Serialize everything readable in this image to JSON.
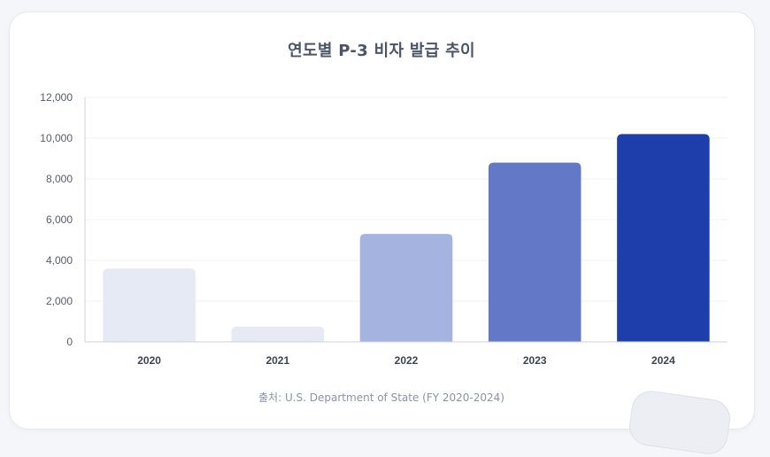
{
  "chart_data": {
    "type": "bar",
    "title": "연도별 P-3 비자 발급 추이",
    "categories": [
      "2020",
      "2021",
      "2022",
      "2023",
      "2024"
    ],
    "values": [
      3600,
      750,
      5300,
      8800,
      10200
    ],
    "bar_colors": [
      "#e6eaf5",
      "#e6eaf5",
      "#a4b3df",
      "#6379c7",
      "#1e3fab"
    ],
    "ylim": [
      0,
      12000
    ],
    "yticks": [
      0,
      2000,
      4000,
      6000,
      8000,
      10000,
      12000
    ],
    "ytick_labels": [
      "0",
      "2,000",
      "4,000",
      "6,000",
      "8,000",
      "10,000",
      "12,000"
    ],
    "grid": true,
    "legend": "none",
    "xlabel": "",
    "ylabel": ""
  },
  "source_note": "출처: U.S. Department of State (FY 2020-2024)",
  "colors": {
    "grid": "#eef0f5",
    "axis": "#cfd3dc",
    "title": "#4a5568"
  }
}
